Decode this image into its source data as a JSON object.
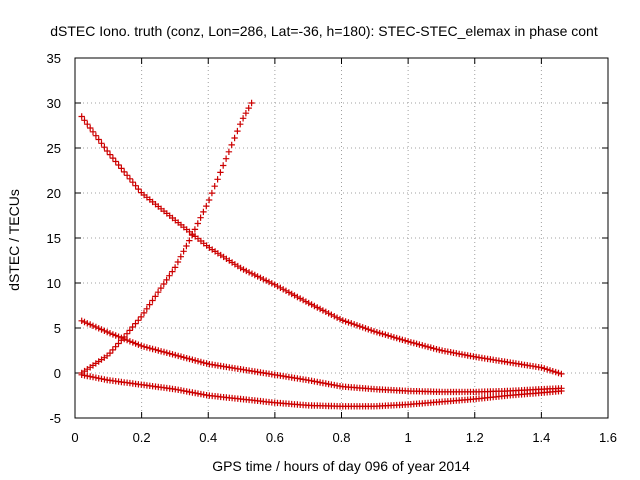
{
  "chart_data": {
    "type": "scatter",
    "title": "dSTEC Iono. truth (conz, Lon=286, Lat=-36, h=180): STEC-STEC_elemax in phase cont",
    "xlabel": "GPS time / hours of day 096 of year 2014",
    "ylabel": "dSTEC  / TECUs",
    "xlim": [
      0,
      1.6
    ],
    "ylim": [
      -5,
      35
    ],
    "xticks": [
      "0",
      "0.2",
      "0.4",
      "0.6",
      "0.8",
      "1",
      "1.2",
      "1.4",
      "1.6"
    ],
    "yticks": [
      "-5",
      "0",
      "5",
      "10",
      "15",
      "20",
      "25",
      "30",
      "35"
    ],
    "grid": true,
    "marker": "plus",
    "color": "#cc0000",
    "series": [
      {
        "x": [
          0.02,
          0.1,
          0.2,
          0.3,
          0.4,
          0.5,
          0.6,
          0.7,
          0.8,
          0.9,
          1.0,
          1.1,
          1.2,
          1.3,
          1.4,
          1.46
        ],
        "y": [
          28.5,
          24.5,
          20.0,
          17.0,
          14.0,
          11.6,
          9.8,
          7.8,
          5.9,
          4.6,
          3.5,
          2.5,
          1.8,
          1.2,
          0.6,
          -0.1
        ]
      },
      {
        "x": [
          0.02,
          0.1,
          0.15,
          0.2,
          0.25,
          0.3,
          0.35,
          0.4,
          0.45,
          0.5,
          0.53
        ],
        "y": [
          0.0,
          2.0,
          4.1,
          6.3,
          9.0,
          11.7,
          15.2,
          19.0,
          23.5,
          28.0,
          30.0
        ]
      },
      {
        "x": [
          0.02,
          0.1,
          0.2,
          0.3,
          0.4,
          0.5,
          0.6,
          0.7,
          0.8,
          0.9,
          1.0,
          1.1,
          1.2,
          1.3,
          1.4,
          1.46
        ],
        "y": [
          5.8,
          4.5,
          3.0,
          2.0,
          1.0,
          0.4,
          -0.2,
          -0.8,
          -1.5,
          -1.8,
          -2.0,
          -2.1,
          -2.1,
          -2.0,
          -1.8,
          -1.7
        ]
      },
      {
        "x": [
          0.02,
          0.1,
          0.2,
          0.3,
          0.4,
          0.5,
          0.6,
          0.7,
          0.8,
          0.9,
          1.0,
          1.1,
          1.2,
          1.3,
          1.4,
          1.46
        ],
        "y": [
          -0.2,
          -0.8,
          -1.3,
          -1.8,
          -2.5,
          -2.9,
          -3.3,
          -3.6,
          -3.7,
          -3.7,
          -3.5,
          -3.2,
          -2.9,
          -2.5,
          -2.2,
          -2.0
        ]
      }
    ]
  }
}
